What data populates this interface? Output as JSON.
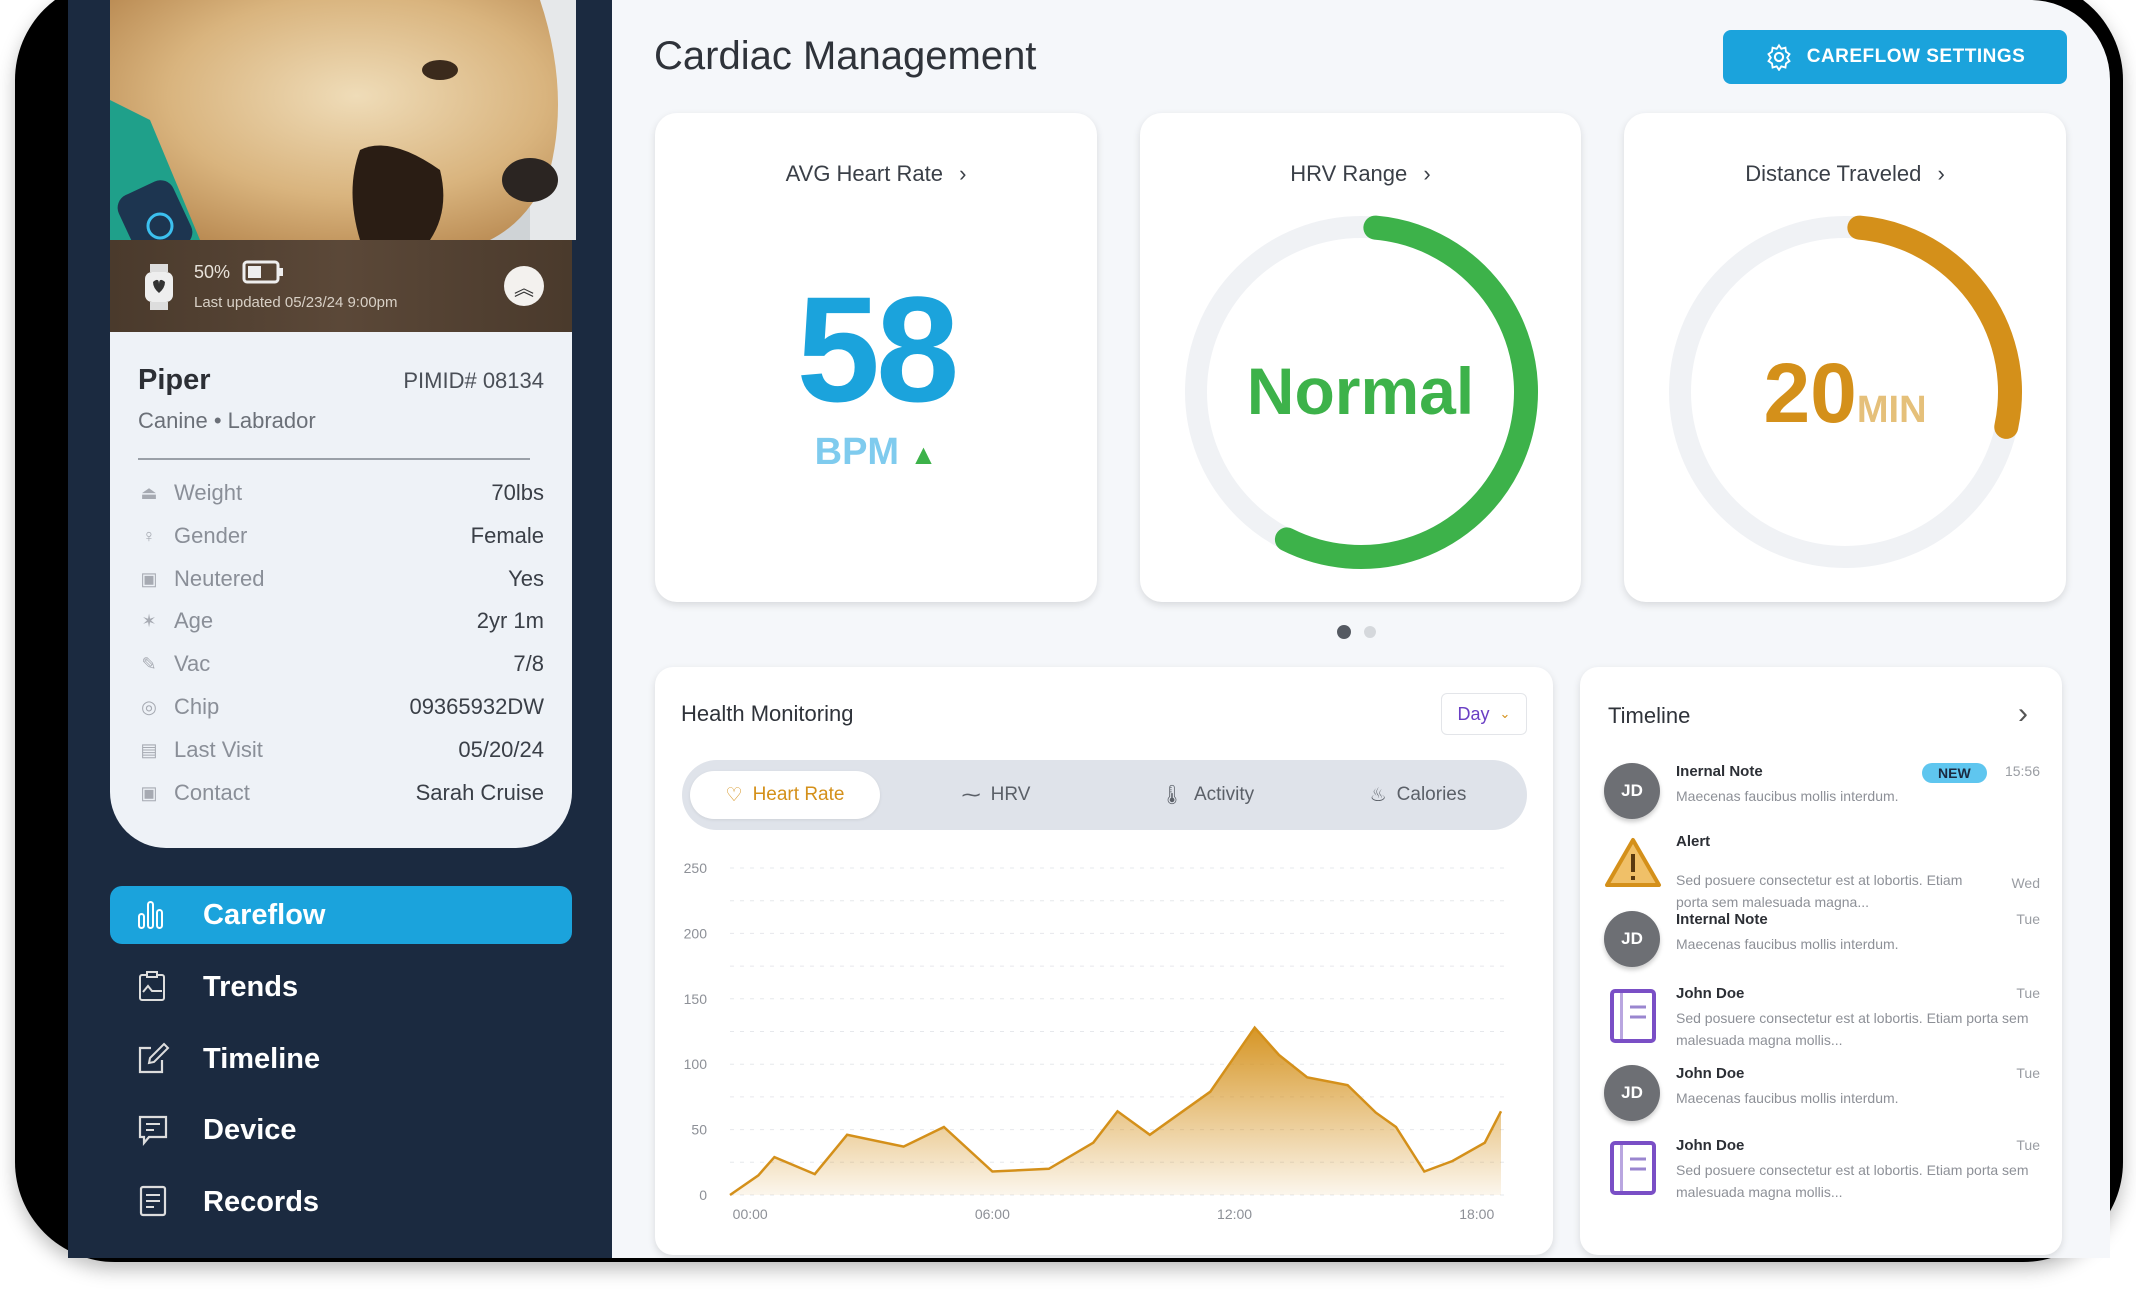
{
  "device": {
    "battery_text": "50%",
    "battery_level": 0.5,
    "last_updated": "Last updated 05/23/24 9:00pm"
  },
  "patient": {
    "name": "Piper",
    "id": "PIMID# 08134",
    "species_breed": "Canine • Labrador",
    "fields": [
      {
        "icon": "weight-icon",
        "label": "Weight",
        "value": "70lbs"
      },
      {
        "icon": "gender-icon",
        "label": "Gender",
        "value": "Female"
      },
      {
        "icon": "clipboard-icon",
        "label": "Neutered",
        "value": "Yes"
      },
      {
        "icon": "party-icon",
        "label": "Age",
        "value": "2yr 1m"
      },
      {
        "icon": "syringe-icon",
        "label": "Vac",
        "value": "7/8"
      },
      {
        "icon": "chip-icon",
        "label": "Chip",
        "value": "09365932DW"
      },
      {
        "icon": "calendar-icon",
        "label": "Last Visit",
        "value": "05/20/24"
      },
      {
        "icon": "contact-icon",
        "label": "Contact",
        "value": "Sarah Cruise"
      }
    ]
  },
  "nav": [
    {
      "label": "Careflow",
      "icon": "bar-chart-icon",
      "active": true
    },
    {
      "label": "Trends",
      "icon": "trends-icon",
      "active": false
    },
    {
      "label": "Timeline",
      "icon": "edit-icon",
      "active": false
    },
    {
      "label": "Device",
      "icon": "message-icon",
      "active": false
    },
    {
      "label": "Records",
      "icon": "document-icon",
      "active": false
    }
  ],
  "header": {
    "title": "Cardiac Management",
    "settings_label": "CAREFLOW SETTINGS"
  },
  "cards": {
    "heart_rate": {
      "title": "AVG Heart Rate",
      "value": "58",
      "unit": "BPM",
      "trend": "up"
    },
    "hrv": {
      "title": "HRV Range",
      "value": "Normal",
      "progress": 0.56
    },
    "distance": {
      "title": "Distance Traveled",
      "value": "20",
      "unit": "MIN",
      "progress": 0.27
    }
  },
  "carousel": {
    "pages": 2,
    "active": 0
  },
  "colors": {
    "primary": "#1ba3dc",
    "green": "#3db24a",
    "orange": "#d4901a",
    "navy": "#1b2a40",
    "purple": "#7a4fc6"
  },
  "health": {
    "title": "Health Monitoring",
    "period": "Day",
    "tabs": [
      {
        "label": "Heart Rate",
        "icon": "heart-icon",
        "active": true
      },
      {
        "label": "HRV",
        "icon": "pulse-icon",
        "active": false
      },
      {
        "label": "Activity",
        "icon": "thermometer-icon",
        "active": false
      },
      {
        "label": "Calories",
        "icon": "flame-icon",
        "active": false
      }
    ]
  },
  "chart_data": {
    "type": "area",
    "x_unit": "hour of day",
    "x": [
      -0.5,
      0.2,
      0.6,
      1.6,
      2.4,
      3.8,
      4.8,
      6.0,
      7.4,
      8.5,
      9.1,
      9.9,
      11.4,
      12.5,
      13.1,
      13.8,
      14.8,
      15.5,
      16.0,
      16.7,
      17.4,
      18.2,
      18.6
    ],
    "values": [
      0,
      15,
      29,
      16,
      46,
      37,
      52,
      18,
      20,
      40,
      64,
      46,
      79,
      128,
      107,
      90,
      84,
      63,
      52,
      18,
      26,
      40,
      64
    ],
    "xticks": [
      {
        "value": 0,
        "label": "00:00"
      },
      {
        "value": 6,
        "label": "06:00"
      },
      {
        "value": 12,
        "label": "12:00"
      },
      {
        "value": 18,
        "label": "18:00"
      }
    ],
    "yticks": [
      "0",
      "50",
      "100",
      "150",
      "200",
      "250"
    ],
    "ylim": [
      0,
      250
    ],
    "xlim": [
      -0.5,
      18.7
    ],
    "grid": true,
    "color": "#d4901a"
  },
  "timeline": {
    "title": "Timeline",
    "items": [
      {
        "type": "avatar",
        "initials": "JD",
        "title": "Inernal Note",
        "badge": "NEW",
        "desc": "Maecenas faucibus mollis interdum.",
        "time": "15:56"
      },
      {
        "type": "alert",
        "title": "Alert",
        "desc": "Sed posuere consectetur est at lobortis. Etiam porta sem malesuada magna...",
        "time": "Wed"
      },
      {
        "type": "avatar",
        "initials": "JD",
        "title": "Internal Note",
        "desc": "Maecenas faucibus mollis interdum.",
        "time": "Tue"
      },
      {
        "type": "record",
        "title": "John Doe",
        "desc": "Sed posuere consectetur est at lobortis. Etiam porta sem malesuada magna mollis...",
        "time": "Tue"
      },
      {
        "type": "avatar",
        "initials": "JD",
        "title": "John Doe",
        "desc": "Maecenas faucibus mollis interdum.",
        "time": "Tue"
      },
      {
        "type": "record",
        "title": "John Doe",
        "desc": "Sed posuere consectetur est at lobortis. Etiam porta sem malesuada magna mollis...",
        "time": "Tue"
      }
    ]
  }
}
